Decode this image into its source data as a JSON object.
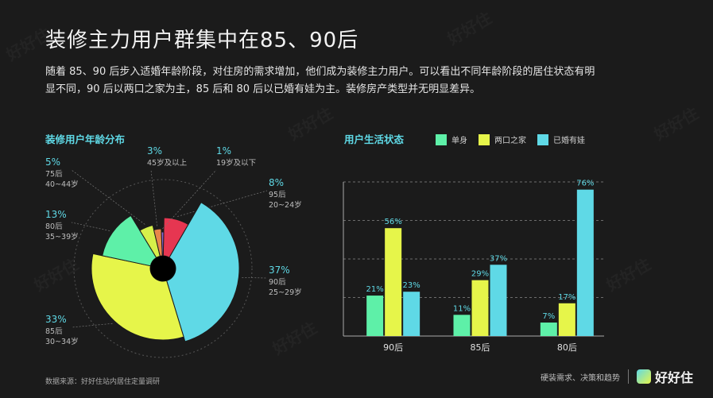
{
  "title": "装修主力用户群集中在85、90后",
  "intro": "随着 85、90 后步入适婚年龄阶段，对住房的需求增加，他们成为装修主力用户。可以看出不同年龄阶段的居住状态有明显不同，90 后以两口之家为主，85 后和 80 后以已婚有娃为主。装修房产类型并无明显差异。",
  "colors": {
    "red": "#e63651",
    "cyan": "#5fd9e6",
    "yellow": "#e6f54a",
    "green": "#5ef0a8",
    "orange": "#e8884a",
    "purple": "#8a6ad8",
    "accent": "#5fd9e6"
  },
  "left_chart_title": "装修用户年龄分布",
  "right_chart_title": "用户生活状态",
  "chart_data": [
    {
      "type": "pie",
      "title": "装修用户年龄分布",
      "slices": [
        {
          "label": "95后",
          "sub": "20~24岁",
          "value": 8,
          "pct": "8%",
          "color": "#e63651"
        },
        {
          "label": "90后",
          "sub": "25~29岁",
          "value": 37,
          "pct": "37%",
          "color": "#5fd9e6"
        },
        {
          "label": "85后",
          "sub": "30~34岁",
          "value": 33,
          "pct": "33%",
          "color": "#e6f54a"
        },
        {
          "label": "80后",
          "sub": "35~39岁",
          "value": 13,
          "pct": "13%",
          "color": "#5ef0a8"
        },
        {
          "label": "75后",
          "sub": "40~44岁",
          "value": 5,
          "pct": "5%",
          "color": "#d6f04a"
        },
        {
          "label": "",
          "sub": "45岁及以上",
          "value": 3,
          "pct": "3%",
          "color": "#e8884a"
        },
        {
          "label": "",
          "sub": "19岁及以下",
          "value": 1,
          "pct": "1%",
          "color": "#8a6ad8"
        }
      ]
    },
    {
      "type": "bar",
      "title": "用户生活状态",
      "categories": [
        "90后",
        "85后",
        "80后"
      ],
      "series": [
        {
          "name": "单身",
          "values": [
            21,
            11,
            7
          ],
          "color": "#5ef0a8"
        },
        {
          "name": "两口之家",
          "values": [
            56,
            29,
            17
          ],
          "color": "#e6f54a"
        },
        {
          "name": "已婚有娃",
          "values": [
            23,
            37,
            76
          ],
          "color": "#5fd9e6"
        }
      ],
      "ylim": [
        0,
        80
      ]
    }
  ],
  "source": "数据来源：好好住站内居住定量调研",
  "footer_tagline": "硬装需求、决策和趋势",
  "logo_text": "好好住"
}
